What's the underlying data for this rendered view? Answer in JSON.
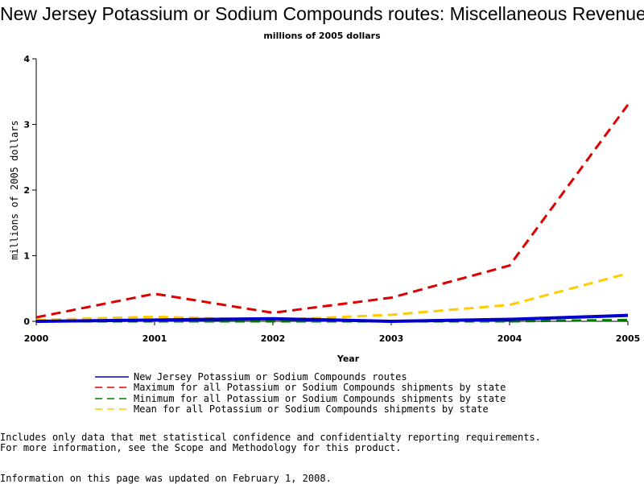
{
  "chart_data": {
    "type": "line",
    "title": "New Jersey Potassium or Sodium Compounds routes: Miscellaneous Revenue",
    "subtitle": "millions of 2005 dollars",
    "xlabel": "Year",
    "ylabel": "millions of 2005 dollars",
    "x": [
      "2000",
      "2001",
      "2002",
      "2003",
      "2004",
      "2005"
    ],
    "xlim": [
      2000,
      2005
    ],
    "ylim": [
      0,
      4
    ],
    "yticks": [
      "0",
      "1",
      "2",
      "3",
      "4"
    ],
    "grid": false,
    "legend_position": "bottom",
    "series": [
      {
        "name": "New Jersey Potassium or Sodium Compounds routes",
        "color": "#0000cc",
        "style": "solid",
        "values": [
          0.0,
          0.02,
          0.04,
          0.0,
          0.03,
          0.09
        ]
      },
      {
        "name": "Maximum for all Potassium or Sodium Compounds shipments by state",
        "color": "#dd0000",
        "style": "dashed",
        "values": [
          0.06,
          0.42,
          0.13,
          0.36,
          0.85,
          3.3
        ]
      },
      {
        "name": "Minimum for all Potassium or Sodium Compounds shipments by state",
        "color": "#007700",
        "style": "dashed",
        "values": [
          0.0,
          0.0,
          0.0,
          0.0,
          0.0,
          0.02
        ]
      },
      {
        "name": "Mean for all Potassium or Sodium Compounds shipments by state",
        "color": "#ffcc00",
        "style": "dashed",
        "values": [
          0.02,
          0.07,
          0.02,
          0.1,
          0.25,
          0.73
        ]
      }
    ]
  },
  "notes": {
    "line1": "Includes only data that met statistical confidence and confidentialty reporting requirements.",
    "line2": "For more information, see the Scope and Methodology for this product.",
    "line3": "Information on this page was updated on February 1, 2008."
  }
}
